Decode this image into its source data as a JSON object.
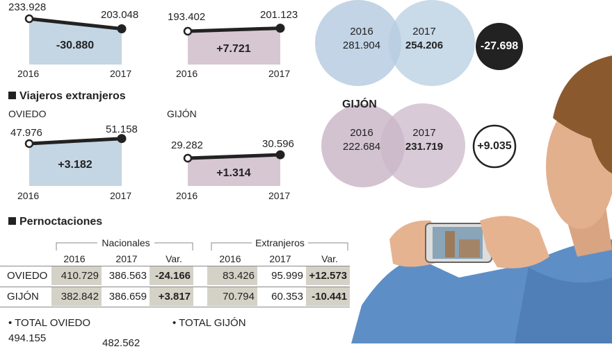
{
  "colors": {
    "oviedo": "#c4d5e3",
    "gijon": "#d6c7d3",
    "line": "#222222",
    "table_shade": "#d4d2c6"
  },
  "chart_data": [
    {
      "type": "line",
      "group": "viajeros-nacionales",
      "city": "OVIEDO",
      "categories": [
        "2016",
        "2017"
      ],
      "values": [
        233928,
        203048
      ],
      "value_labels": [
        "233.928",
        "203.048"
      ],
      "variation": "-30.880",
      "color": "#c4d5e3"
    },
    {
      "type": "line",
      "group": "viajeros-nacionales",
      "city": "GIJÓN",
      "categories": [
        "2016",
        "2017"
      ],
      "values": [
        193402,
        201123
      ],
      "value_labels": [
        "193.402",
        "201.123"
      ],
      "variation": "+7.721",
      "color": "#d6c7d3"
    },
    {
      "type": "line",
      "group": "viajeros-extranjeros",
      "city": "OVIEDO",
      "categories": [
        "2016",
        "2017"
      ],
      "values": [
        47976,
        51158
      ],
      "value_labels": [
        "47.976",
        "51.158"
      ],
      "variation": "+3.182",
      "color": "#c4d5e3"
    },
    {
      "type": "line",
      "group": "viajeros-extranjeros",
      "city": "GIJÓN",
      "categories": [
        "2016",
        "2017"
      ],
      "values": [
        29282,
        30596
      ],
      "value_labels": [
        "29.282",
        "30.596"
      ],
      "variation": "+1.314",
      "color": "#d6c7d3"
    }
  ],
  "sections": {
    "extranjeros_title": "Viajeros extranjeros",
    "extranjeros_oviedo": "OVIEDO",
    "extranjeros_gijon": "GIJÓN",
    "pernoctaciones_title": "Pernoctaciones"
  },
  "venn": {
    "oviedo": {
      "label_2016": "2016",
      "value_2016": "281.904",
      "label_2017": "2017",
      "value_2017": "254.206",
      "variation": "-27.698"
    },
    "gijon": {
      "title": "GIJÓN",
      "label_2016": "2016",
      "value_2016": "222.684",
      "label_2017": "2017",
      "value_2017": "231.719",
      "variation": "+9.035"
    }
  },
  "table": {
    "group_headers": [
      "Nacionales",
      "Extranjeros"
    ],
    "columns": [
      "2016",
      "2017",
      "Var.",
      "2016",
      "2017",
      "Var."
    ],
    "rows": [
      {
        "city": "OVIEDO",
        "values": [
          "410.729",
          "386.563",
          "-24.166",
          "83.426",
          "95.999",
          "+12.573"
        ]
      },
      {
        "city": "GIJÓN",
        "values": [
          "382.842",
          "386.659",
          "+3.817",
          "70.794",
          "60.353",
          "-10.441"
        ]
      }
    ]
  },
  "totals": {
    "oviedo_label": "• TOTAL OVIEDO",
    "oviedo_value": "494.155",
    "second_value": "482.562",
    "gijon_label": "• TOTAL GIJÓN"
  }
}
